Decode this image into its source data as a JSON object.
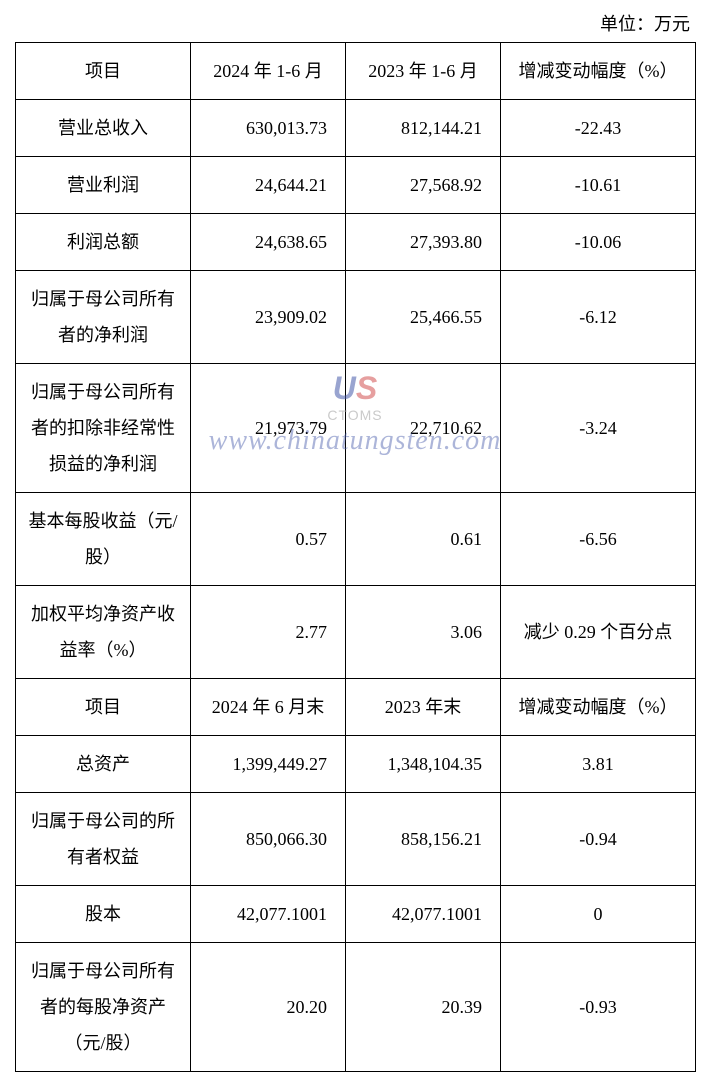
{
  "unit_label": "单位：万元",
  "table1": {
    "headers": [
      "项目",
      "2024 年 1-6 月",
      "2023 年 1-6 月",
      "增减变动幅度（%）"
    ],
    "rows": [
      {
        "label": "营业总收入",
        "v2024": "630,013.73",
        "v2023": "812,144.21",
        "change": "-22.43"
      },
      {
        "label": "营业利润",
        "v2024": "24,644.21",
        "v2023": "27,568.92",
        "change": "-10.61"
      },
      {
        "label": "利润总额",
        "v2024": "24,638.65",
        "v2023": "27,393.80",
        "change": "-10.06"
      },
      {
        "label": "归属于母公司所有者的净利润",
        "v2024": "23,909.02",
        "v2023": "25,466.55",
        "change": "-6.12"
      },
      {
        "label": "归属于母公司所有者的扣除非经常性损益的净利润",
        "v2024": "21,973.79",
        "v2023": "22,710.62",
        "change": "-3.24"
      },
      {
        "label": "基本每股收益（元/股）",
        "v2024": "0.57",
        "v2023": "0.61",
        "change": "-6.56"
      },
      {
        "label": "加权平均净资产收益率（%）",
        "v2024": "2.77",
        "v2023": "3.06",
        "change": "减少 0.29 个百分点"
      }
    ]
  },
  "table2": {
    "headers": [
      "项目",
      "2024 年 6 月末",
      "2023 年末",
      "增减变动幅度（%）"
    ],
    "rows": [
      {
        "label": "总资产",
        "v2024": "1,399,449.27",
        "v2023": "1,348,104.35",
        "change": "3.81"
      },
      {
        "label": "归属于母公司的所有者权益",
        "v2024": "850,066.30",
        "v2023": "858,156.21",
        "change": "-0.94"
      },
      {
        "label": "股本",
        "v2024": "42,077.1001",
        "v2023": "42,077.1001",
        "change": "0"
      },
      {
        "label": "归属于母公司所有者的每股净资产（元/股）",
        "v2024": "20.20",
        "v2023": "20.39",
        "change": "-0.93"
      }
    ]
  },
  "watermark": {
    "logo_left": "U",
    "logo_right": "S",
    "sub": "CTOMS",
    "url": "www.chinatungsten.com",
    "logo_color_left": "#4a5aac",
    "logo_color_right": "#d15050",
    "url_color": "#4a5aac"
  },
  "style": {
    "font_family": "SimSun",
    "cell_fontsize": 18,
    "border_color": "#000000",
    "background": "#ffffff",
    "line_height": 2.0
  }
}
